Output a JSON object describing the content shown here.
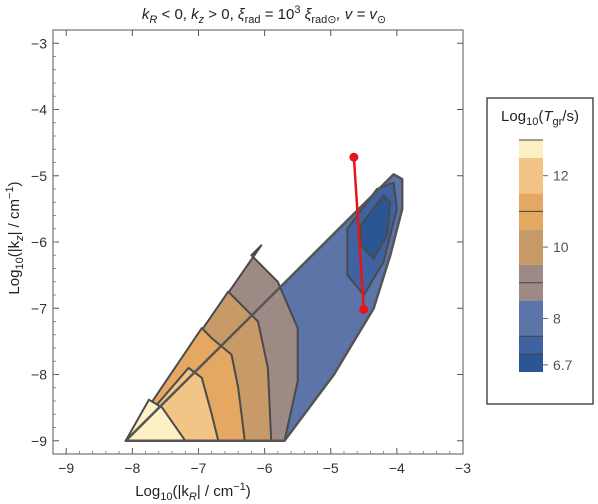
{
  "chart_data": {
    "type": "contour",
    "title_parts": {
      "kR_sym": "k",
      "kR_sub": "R",
      "kR_cond": " < 0, ",
      "kz_sym": "k",
      "kz_sub": "z",
      "kz_cond": " > 0, ",
      "xi_sym": "ξ",
      "xi_sub": "rad",
      "xi_eq": " = 10",
      "xi_exp": "3",
      "xi_sym2": " ξ",
      "xi_sub2": "rad⊙",
      "v_part": ", v = v",
      "v_sub": "⊙"
    },
    "xlabel": {
      "pre": "Log",
      "sub": "10",
      "post": "(|k",
      "sub2": "R",
      "post2": "| / cm",
      "sup": "−1",
      "close": ")"
    },
    "ylabel": {
      "pre": "Log",
      "sub": "10",
      "post": "(|k",
      "sub2": "z",
      "post2": "| / cm",
      "sup": "−1",
      "close": ")"
    },
    "xlim": [
      -9.2,
      -3.0
    ],
    "ylim": [
      -9.2,
      -2.8
    ],
    "xticks": [
      -9,
      -8,
      -7,
      -6,
      -5,
      -4,
      -3
    ],
    "yticks": [
      -9,
      -8,
      -7,
      -6,
      -5,
      -4,
      -3
    ],
    "xtick_labels": [
      "−9",
      "−8",
      "−7",
      "−6",
      "−5",
      "−4",
      "−3"
    ],
    "ytick_labels": [
      "−9",
      "−8",
      "−7",
      "−6",
      "−5",
      "−4",
      "−3"
    ],
    "region_boundary": [
      [
        -8.1,
        -9.0
      ],
      [
        -4.05,
        -4.98
      ],
      [
        -3.92,
        -5.05
      ],
      [
        -3.92,
        -5.5
      ],
      [
        -4.1,
        -6.2
      ],
      [
        -4.35,
        -7.0
      ],
      [
        -4.95,
        -8.0
      ],
      [
        -5.7,
        -9.0
      ]
    ],
    "contour_bands": [
      {
        "level_min": 12.5,
        "level_max": 13.0,
        "color": "#fdf0c4",
        "boundary": [
          [
            -8.1,
            -9.0
          ],
          [
            -7.2,
            -9.0
          ],
          [
            -7.55,
            -8.5
          ],
          [
            -7.75,
            -8.38
          ]
        ]
      },
      {
        "level_min": 11.5,
        "level_max": 12.5,
        "color": "#f2c587",
        "boundary": [
          [
            -8.1,
            -9.0
          ],
          [
            -6.7,
            -9.0
          ],
          [
            -6.8,
            -8.6
          ],
          [
            -6.95,
            -8.05
          ],
          [
            -7.15,
            -7.9
          ]
        ]
      },
      {
        "level_min": 10.5,
        "level_max": 11.5,
        "color": "#e5a862",
        "boundary": [
          [
            -8.1,
            -9.0
          ],
          [
            -6.3,
            -9.0
          ],
          [
            -6.4,
            -8.2
          ],
          [
            -6.5,
            -7.7
          ],
          [
            -6.8,
            -7.45
          ],
          [
            -6.95,
            -7.3
          ]
        ]
      },
      {
        "level_min": 9.5,
        "level_max": 10.5,
        "color": "#c89a67",
        "boundary": [
          [
            -8.1,
            -9.0
          ],
          [
            -5.9,
            -9.0
          ],
          [
            -5.95,
            -7.9
          ],
          [
            -6.1,
            -7.2
          ],
          [
            -6.45,
            -6.85
          ],
          [
            -6.55,
            -6.75
          ]
        ]
      },
      {
        "level_min": 8.5,
        "level_max": 9.5,
        "color": "#9e8a85",
        "boundary": [
          [
            -8.1,
            -9.0
          ],
          [
            -5.7,
            -9.0
          ],
          [
            -5.5,
            -8.1
          ],
          [
            -5.5,
            -7.3
          ],
          [
            -5.8,
            -6.6
          ],
          [
            -6.2,
            -6.2
          ],
          [
            -6.05,
            -6.05
          ]
        ]
      },
      {
        "level_min": 7.5,
        "level_max": 8.5,
        "color": "#5c74a8",
        "boundary": [
          [
            -8.1,
            -9.0
          ],
          [
            -5.7,
            -9.0
          ],
          [
            -4.95,
            -8.0
          ],
          [
            -4.35,
            -7.0
          ],
          [
            -4.1,
            -6.2
          ],
          [
            -3.92,
            -5.5
          ],
          [
            -3.92,
            -5.05
          ],
          [
            -4.05,
            -4.98
          ]
        ]
      },
      {
        "level_min": 7.0,
        "level_max": 7.5,
        "color": "#3f62a0",
        "boundary": [
          [
            -4.75,
            -5.8
          ],
          [
            -4.3,
            -5.2
          ],
          [
            -4.05,
            -5.1
          ],
          [
            -4.0,
            -5.5
          ],
          [
            -4.2,
            -6.3
          ],
          [
            -4.5,
            -6.8
          ],
          [
            -4.75,
            -6.5
          ]
        ]
      },
      {
        "level_min": 6.5,
        "level_max": 7.0,
        "color": "#2a5794",
        "boundary": [
          [
            -4.55,
            -5.75
          ],
          [
            -4.2,
            -5.3
          ],
          [
            -4.1,
            -5.4
          ],
          [
            -4.15,
            -5.9
          ],
          [
            -4.35,
            -6.25
          ],
          [
            -4.55,
            -6.05
          ]
        ]
      }
    ],
    "red_line": {
      "color": "#e8141c",
      "points": [
        [
          -4.65,
          -4.72
        ],
        [
          -4.5,
          -7.02
        ]
      ]
    },
    "colorbar": {
      "title_pre": "Log",
      "title_sub": "10",
      "title_post": "(",
      "title_T": "T",
      "title_Tsub": "gr",
      "title_end": "/s)",
      "range": [
        6.5,
        13.0
      ],
      "ticks": [
        12,
        10,
        8,
        6.7
      ],
      "tick_labels": [
        "12",
        "10",
        "8",
        "6.7"
      ],
      "minor_ticks": [
        13,
        11,
        9,
        7.5,
        7
      ],
      "colors": [
        {
          "from": 6.5,
          "to": 7.0,
          "color": "#2a5794"
        },
        {
          "from": 7.0,
          "to": 7.5,
          "color": "#3f62a0"
        },
        {
          "from": 7.5,
          "to": 8.5,
          "color": "#5c74a8"
        },
        {
          "from": 8.5,
          "to": 9.5,
          "color": "#9e8a85"
        },
        {
          "from": 9.5,
          "to": 10.5,
          "color": "#c89a67"
        },
        {
          "from": 10.5,
          "to": 11.5,
          "color": "#e5a862"
        },
        {
          "from": 11.5,
          "to": 12.5,
          "color": "#f2c587"
        },
        {
          "from": 12.5,
          "to": 13.0,
          "color": "#fdf0c4"
        }
      ]
    }
  }
}
